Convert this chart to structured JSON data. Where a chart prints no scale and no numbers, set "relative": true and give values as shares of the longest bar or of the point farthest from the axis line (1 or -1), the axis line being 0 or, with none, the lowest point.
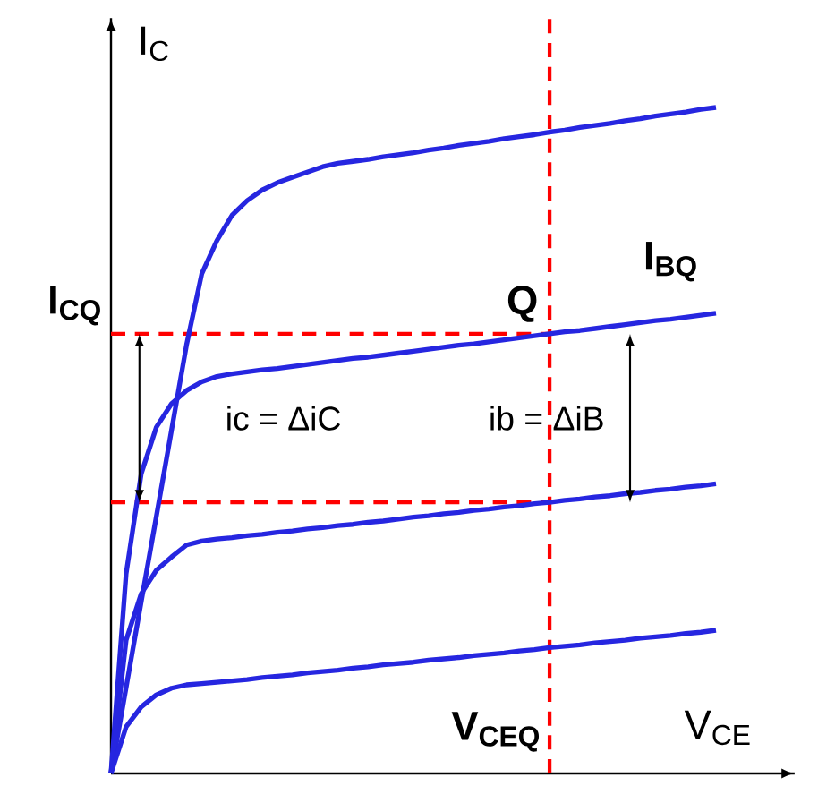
{
  "chart_data": {
    "type": "line",
    "relative": true,
    "xlabel": "V$_{CE}$",
    "ylabel": "I$_{C}$",
    "categories": [
      null,
      null,
      null,
      null,
      null,
      null,
      null,
      null,
      null,
      null,
      null,
      null,
      null,
      null,
      null,
      null,
      null,
      null,
      null,
      null,
      null,
      null,
      null,
      null,
      null,
      null,
      null,
      null,
      null,
      null,
      null,
      null,
      null,
      null,
      null,
      null,
      null,
      null,
      null,
      null,
      null
    ],
    "series": [
      {
        "color": "#2626e0",
        "values": [
          0,
          0.129,
          0.258,
          0.386,
          0.515,
          0.644,
          0.75,
          0.8,
          0.838,
          0.86,
          0.876,
          0.887,
          0.895,
          0.903,
          0.911,
          0.916,
          0.919,
          0.922,
          0.926,
          0.929,
          0.932,
          0.936,
          0.939,
          0.943,
          0.946,
          0.949,
          0.953,
          0.956,
          0.959,
          0.963,
          0.966,
          0.97,
          0.973,
          0.976,
          0.98,
          0.983,
          0.987,
          0.99,
          0.993,
          0.997,
          1
        ]
      },
      {
        "name": "I$_{BQ}$",
        "color": "#2626e0",
        "values": [
          0,
          0.3,
          0.45,
          0.52,
          0.555,
          0.575,
          0.588,
          0.596,
          0.6,
          0.603,
          0.606,
          0.608,
          0.611,
          0.614,
          0.617,
          0.62,
          0.623,
          0.625,
          0.628,
          0.631,
          0.634,
          0.637,
          0.64,
          0.643,
          0.645,
          0.648,
          0.651,
          0.654,
          0.657,
          0.66,
          0.663,
          0.665,
          0.668,
          0.671,
          0.674,
          0.677,
          0.68,
          0.682,
          0.685,
          0.688,
          0.691
        ]
      },
      {
        "color": "#2626e0",
        "values": [
          0,
          0.2,
          0.27,
          0.305,
          0.325,
          0.343,
          0.349,
          0.352,
          0.354,
          0.357,
          0.359,
          0.362,
          0.364,
          0.367,
          0.369,
          0.372,
          0.374,
          0.377,
          0.379,
          0.382,
          0.385,
          0.387,
          0.39,
          0.392,
          0.395,
          0.397,
          0.4,
          0.402,
          0.405,
          0.407,
          0.41,
          0.412,
          0.415,
          0.417,
          0.42,
          0.422,
          0.425,
          0.427,
          0.43,
          0.432,
          0.435
        ]
      },
      {
        "color": "#2626e0",
        "values": [
          0,
          0.07,
          0.1,
          0.118,
          0.128,
          0.133,
          0.135,
          0.137,
          0.139,
          0.141,
          0.144,
          0.146,
          0.148,
          0.151,
          0.153,
          0.155,
          0.158,
          0.16,
          0.163,
          0.165,
          0.167,
          0.17,
          0.172,
          0.174,
          0.177,
          0.179,
          0.181,
          0.184,
          0.186,
          0.189,
          0.191,
          0.193,
          0.196,
          0.198,
          0.2,
          0.203,
          0.205,
          0.207,
          0.21,
          0.212,
          0.215
        ]
      }
    ],
    "ref_lines": [
      {
        "axis": "y",
        "value": 0.66,
        "label": "I$_{CQ}$",
        "color": "#ff0000",
        "line_style": "dashed"
      },
      {
        "axis": "y",
        "value": 0.407,
        "color": "#ff0000",
        "line_style": "dashed"
      },
      {
        "axis": "x",
        "label": "V$_{CEQ}$",
        "color": "#ff0000",
        "line_style": "dashed"
      }
    ],
    "annotations": [
      "Q",
      "ic = ΔiC",
      "ib = ΔiB"
    ]
  }
}
